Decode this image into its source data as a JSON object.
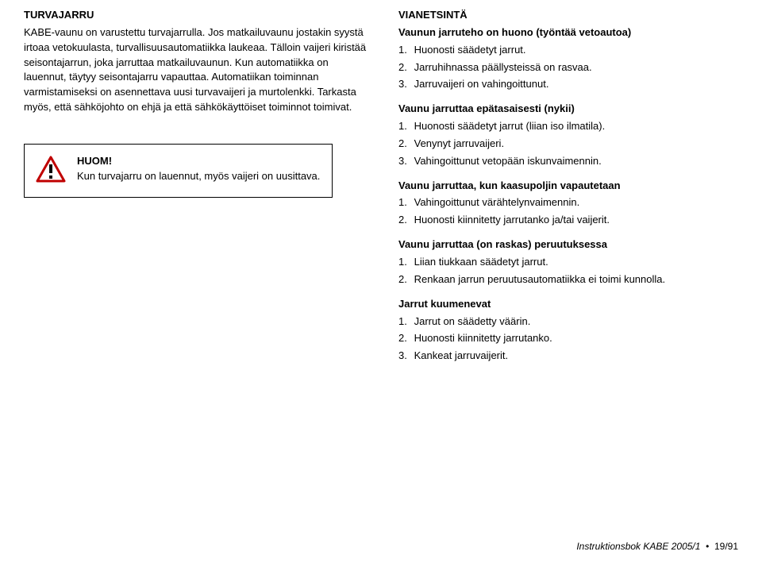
{
  "left": {
    "title": "TURVAJARRU",
    "body": "KABE-vaunu on varustettu turvajarrulla. Jos matkailuvaunu jostakin syystä irtoaa vetokuulasta, turvallisuusautomatiikka laukeaa. Tälloin vaijeri kiristää seisontajarrun, joka jarruttaa matkailuvaunun. Kun automatiikka on lauennut, täytyy seisontajarru vapauttaa. Automatiikan toiminnan varmistamiseksi on asennettava uusi turvavaijeri ja murtolenkki. Tarkasta myös, että sähköjohto on ehjä ja että sähkökäyttöiset toiminnot toimivat.",
    "note": {
      "label": "HUOM!",
      "text": "Kun turvajarru on lauennut, myös vaijeri on uusittava."
    }
  },
  "right": {
    "title": "VIANETSINTÄ",
    "s1": {
      "heading": "Vaunun jarruteho on huono (työntää vetoautoa)",
      "items": [
        "Huonosti säädetyt jarrut.",
        "Jarruhihnassa  päällysteissä on rasvaa.",
        "Jarruvaijeri on vahingoittunut."
      ]
    },
    "s2": {
      "heading": "Vaunu jarruttaa epätasaisesti (nykii)",
      "items": [
        "Huonosti säädetyt jarrut (liian iso ilmatila).",
        "Venynyt jarruvaijeri.",
        "Vahingoittunut vetopään iskunvaimennin."
      ]
    },
    "s3": {
      "heading": "Vaunu jarruttaa, kun kaasupoljin vapautetaan",
      "items": [
        "Vahingoittunut värähtelynvaimennin.",
        "Huonosti kiinnitetty jarrutanko ja/tai vaijerit."
      ]
    },
    "s4": {
      "heading": "Vaunu jarruttaa (on raskas) peruutuksessa",
      "items": [
        "Liian tiukkaan säädetyt jarrut.",
        "Renkaan jarrun peruutusautomatiikka ei toimi kunnolla."
      ]
    },
    "s5": {
      "heading": "Jarrut kuumenevat",
      "items": [
        "Jarrut on säädetty väärin.",
        "Huonosti kiinnitetty jarrutanko.",
        "Kankeat jarruvaijerit."
      ]
    }
  },
  "footer": {
    "title": "Instruktionsbok KABE 2005/1",
    "page": "19/91"
  },
  "icon": {
    "border": "#c00000",
    "fill": "#ffffff",
    "mark": "#000000"
  }
}
